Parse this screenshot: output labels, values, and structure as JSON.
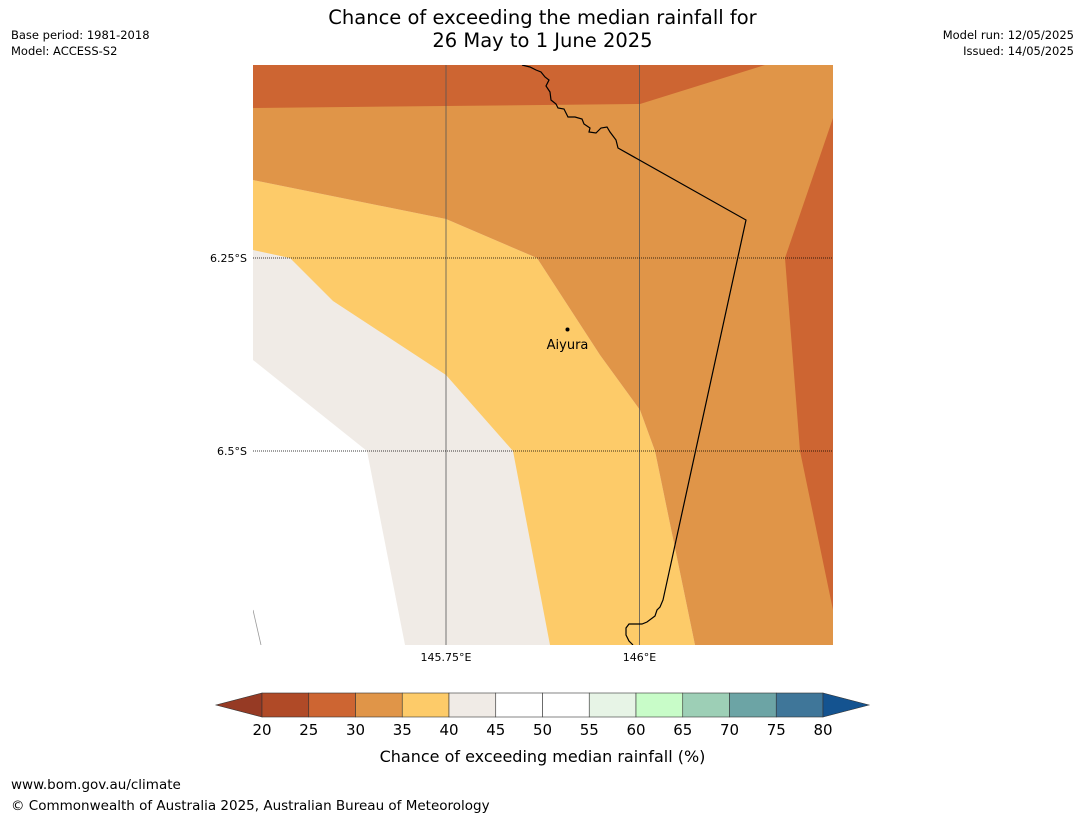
{
  "header": {
    "title_line1": "Chance of exceeding the median rainfall for",
    "title_line2": "26 May to 1 June 2025",
    "base_period": "Base period: 1981-2018",
    "model": "Model: ACCESS-S2",
    "model_run": "Model run: 12/05/2025",
    "issued": "Issued: 14/05/2025"
  },
  "map": {
    "lat_labels": [
      "6.25°S",
      "6.5°S"
    ],
    "lon_labels": [
      "145.75°E",
      "146°E"
    ],
    "place": {
      "name": "Aiyura"
    }
  },
  "legend": {
    "title": "Chance of exceeding median rainfall (%)",
    "ticks": [
      "20",
      "25",
      "30",
      "35",
      "40",
      "45",
      "50",
      "55",
      "60",
      "65",
      "70",
      "75",
      "80"
    ],
    "colors": [
      "#b04a27",
      "#cd6532",
      "#e09548",
      "#fdcb69",
      "#f0ebe6",
      "#ffffff",
      "#ffffff",
      "#e7f4e6",
      "#c8fcc8",
      "#9dcfb6",
      "#6ca4a5",
      "#3f7699"
    ],
    "under_color": "#963a24",
    "over_color": "#145390"
  },
  "footer": {
    "url": "www.bom.gov.au/climate",
    "copyright": "© Commonwealth of Australia 2025, Australian Bureau of Meteorology"
  }
}
